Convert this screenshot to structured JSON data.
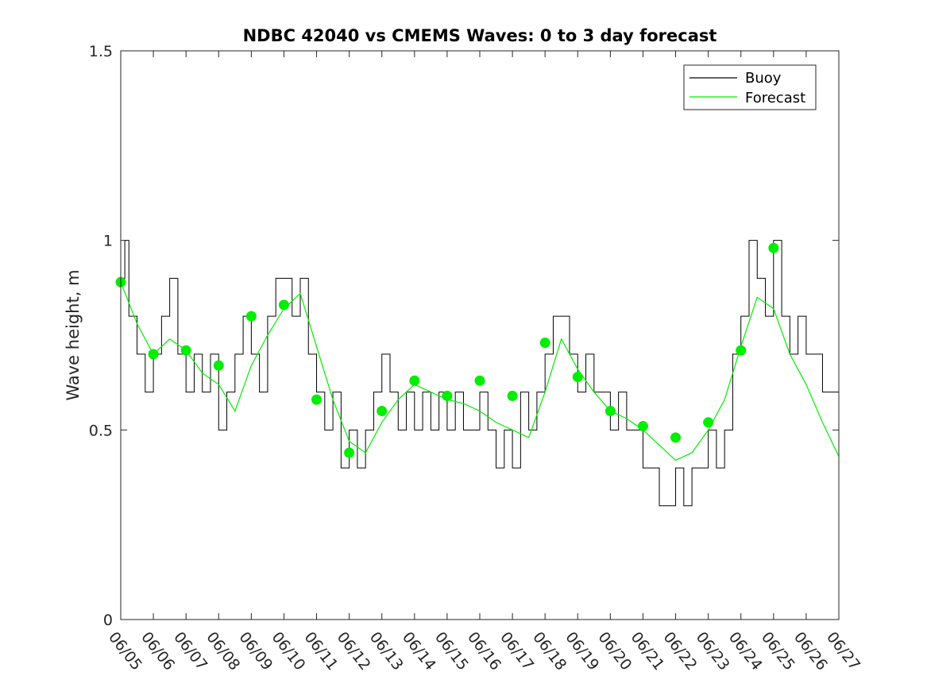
{
  "chart_data": {
    "type": "line",
    "title": "NDBC 42040 vs CMEMS Waves: 0 to 3 day forecast",
    "xlabel": "",
    "ylabel": "Wave height, m",
    "xlim": [
      "06/05",
      "06/27"
    ],
    "ylim": [
      0,
      1.5
    ],
    "x_ticks": [
      "06/05",
      "06/06",
      "06/07",
      "06/08",
      "06/09",
      "06/10",
      "06/11",
      "06/12",
      "06/13",
      "06/14",
      "06/15",
      "06/16",
      "06/17",
      "06/18",
      "06/19",
      "06/20",
      "06/21",
      "06/22",
      "06/23",
      "06/24",
      "06/25",
      "06/26",
      "06/27"
    ],
    "y_ticks": [
      "0",
      "0.5",
      "1",
      "1.5"
    ],
    "grid": false,
    "legend_position": "top-right",
    "legend": [
      {
        "label": "Buoy",
        "color": "#000000"
      },
      {
        "label": "Forecast",
        "color": "#00ee00"
      }
    ],
    "colors": {
      "buoy": "#000000",
      "forecast": "#00ee00",
      "marker": "#00ee00"
    },
    "series": [
      {
        "name": "Buoy",
        "x": [
          "06/05 00:00",
          "06/05 03:00",
          "06/05 06:00",
          "06/05 12:00",
          "06/05 18:00",
          "06/06 00:00",
          "06/06 06:00",
          "06/06 12:00",
          "06/06 18:00",
          "06/07 00:00",
          "06/07 06:00",
          "06/07 12:00",
          "06/07 18:00",
          "06/08 00:00",
          "06/08 06:00",
          "06/08 12:00",
          "06/08 18:00",
          "06/09 00:00",
          "06/09 06:00",
          "06/09 12:00",
          "06/09 18:00",
          "06/10 00:00",
          "06/10 06:00",
          "06/10 12:00",
          "06/10 18:00",
          "06/11 00:00",
          "06/11 06:00",
          "06/11 12:00",
          "06/11 18:00",
          "06/12 00:00",
          "06/12 06:00",
          "06/12 12:00",
          "06/12 18:00",
          "06/13 00:00",
          "06/13 06:00",
          "06/13 12:00",
          "06/13 18:00",
          "06/14 00:00",
          "06/14 06:00",
          "06/14 12:00",
          "06/14 18:00",
          "06/15 00:00",
          "06/15 06:00",
          "06/15 12:00",
          "06/15 18:00",
          "06/16 00:00",
          "06/16 06:00",
          "06/16 12:00",
          "06/16 18:00",
          "06/17 00:00",
          "06/17 06:00",
          "06/17 12:00",
          "06/17 18:00",
          "06/18 00:00",
          "06/18 06:00",
          "06/18 12:00",
          "06/18 18:00",
          "06/19 00:00",
          "06/19 06:00",
          "06/19 12:00",
          "06/19 18:00",
          "06/20 00:00",
          "06/20 06:00",
          "06/20 12:00",
          "06/20 18:00",
          "06/21 00:00",
          "06/21 06:00",
          "06/21 12:00",
          "06/21 18:00",
          "06/22 00:00",
          "06/22 06:00",
          "06/22 12:00",
          "06/22 18:00",
          "06/23 00:00",
          "06/23 06:00",
          "06/23 12:00",
          "06/23 18:00",
          "06/24 00:00",
          "06/24 06:00",
          "06/24 12:00",
          "06/24 18:00",
          "06/25 00:00",
          "06/25 06:00",
          "06/25 12:00",
          "06/25 18:00",
          "06/26 00:00",
          "06/26 06:00",
          "06/26 12:00",
          "06/26 18:00",
          "06/27 00:00"
        ],
        "values": [
          0.9,
          1.0,
          0.8,
          0.7,
          0.6,
          0.7,
          0.8,
          0.9,
          0.7,
          0.6,
          0.7,
          0.6,
          0.7,
          0.5,
          0.6,
          0.7,
          0.8,
          0.7,
          0.6,
          0.8,
          0.9,
          0.9,
          0.8,
          0.9,
          0.7,
          0.6,
          0.5,
          0.6,
          0.4,
          0.5,
          0.4,
          0.5,
          0.6,
          0.7,
          0.6,
          0.5,
          0.6,
          0.5,
          0.6,
          0.5,
          0.6,
          0.5,
          0.6,
          0.5,
          0.5,
          0.6,
          0.5,
          0.4,
          0.5,
          0.4,
          0.6,
          0.5,
          0.6,
          0.7,
          0.8,
          0.8,
          0.7,
          0.6,
          0.7,
          0.6,
          0.6,
          0.5,
          0.6,
          0.5,
          0.5,
          0.4,
          0.4,
          0.3,
          0.3,
          0.4,
          0.3,
          0.4,
          0.4,
          0.5,
          0.4,
          0.5,
          0.7,
          0.8,
          1.0,
          0.9,
          0.8,
          1.0,
          0.8,
          0.7,
          0.8,
          0.7,
          0.7,
          0.6,
          0.6,
          0.5
        ]
      },
      {
        "name": "Forecast",
        "x": [
          "06/05 00:00",
          "06/05 12:00",
          "06/06 00:00",
          "06/06 12:00",
          "06/07 00:00",
          "06/07 12:00",
          "06/08 00:00",
          "06/08 12:00",
          "06/09 00:00",
          "06/09 12:00",
          "06/10 00:00",
          "06/10 12:00",
          "06/11 00:00",
          "06/11 12:00",
          "06/12 00:00",
          "06/12 12:00",
          "06/13 00:00",
          "06/13 12:00",
          "06/14 00:00",
          "06/14 12:00",
          "06/15 00:00",
          "06/15 12:00",
          "06/16 00:00",
          "06/16 12:00",
          "06/17 00:00",
          "06/17 12:00",
          "06/18 00:00",
          "06/18 12:00",
          "06/19 00:00",
          "06/19 12:00",
          "06/20 00:00",
          "06/20 12:00",
          "06/21 00:00",
          "06/21 12:00",
          "06/22 00:00",
          "06/22 12:00",
          "06/23 00:00",
          "06/23 12:00",
          "06/24 00:00",
          "06/24 12:00",
          "06/25 00:00",
          "06/25 12:00",
          "06/26 00:00",
          "06/26 12:00",
          "06/27 00:00"
        ],
        "values": [
          0.89,
          0.78,
          0.7,
          0.74,
          0.71,
          0.65,
          0.62,
          0.55,
          0.67,
          0.75,
          0.82,
          0.86,
          0.72,
          0.58,
          0.47,
          0.44,
          0.52,
          0.58,
          0.62,
          0.6,
          0.58,
          0.57,
          0.55,
          0.52,
          0.5,
          0.48,
          0.6,
          0.74,
          0.66,
          0.6,
          0.55,
          0.53,
          0.5,
          0.46,
          0.42,
          0.44,
          0.5,
          0.58,
          0.72,
          0.85,
          0.82,
          0.7,
          0.62,
          0.52,
          0.43
        ]
      },
      {
        "name": "Forecast",
        "x": [
          "06/05 00:00",
          "06/06 00:00",
          "06/07 00:00",
          "06/08 00:00",
          "06/09 00:00",
          "06/10 00:00",
          "06/11 00:00",
          "06/12 00:00",
          "06/13 00:00",
          "06/14 00:00",
          "06/15 00:00",
          "06/16 00:00",
          "06/17 00:00",
          "06/18 00:00",
          "06/19 00:00",
          "06/20 00:00",
          "06/21 00:00",
          "06/22 00:00",
          "06/23 00:00",
          "06/24 00:00",
          "06/25 00:00"
        ],
        "values": [
          0.89,
          0.7,
          0.71,
          0.67,
          0.8,
          0.83,
          0.58,
          0.44,
          0.55,
          0.63,
          0.59,
          0.63,
          0.59,
          0.73,
          0.64,
          0.55,
          0.51,
          0.48,
          0.52,
          0.71,
          0.98
        ]
      }
    ]
  }
}
